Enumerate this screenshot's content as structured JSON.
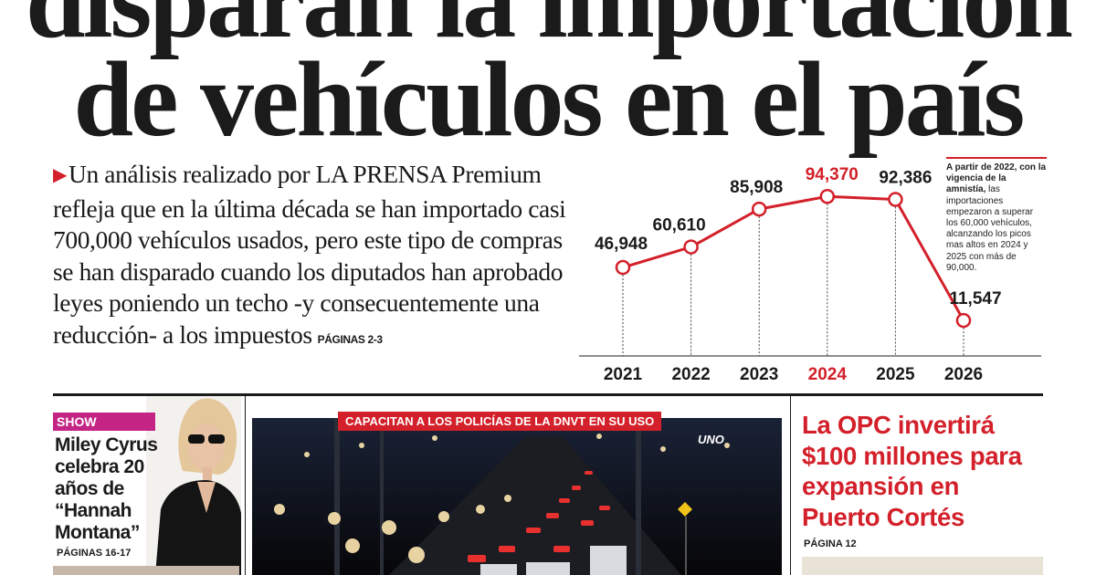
{
  "headline": {
    "line1": "disparan la importación",
    "line2": "de vehículos en el país"
  },
  "lede": {
    "marker": "▶",
    "text": "Un análisis realizado por LA PRENSA Premium refleja que en la última década se han importado casi 700,000 vehículos usados, pero este tipo de compras se han disparado cuando los diputados han aprobado leyes poniendo un techo -y consecuentemente una reducción- a los impuestos",
    "pages": "PÁGINAS 2-3"
  },
  "chart_data": {
    "type": "line",
    "x": [
      "2021",
      "2022",
      "2023",
      "2024",
      "2025",
      "2026"
    ],
    "series": [
      {
        "values": [
          46948,
          60610,
          85908,
          94370,
          92386,
          11547
        ]
      }
    ],
    "labels": [
      "46,948",
      "60,610",
      "85,908",
      "94,370",
      "92,386",
      "11,547"
    ],
    "highlight": "2024",
    "grid": false,
    "color": "#d3202a",
    "highlight_color": "#d3202a"
  },
  "note": {
    "bold": "A partir de 2022, con la vigencia de la amnistía,",
    "text": "las importaciones empezaron a superar los 60,000 vehículos, alcanzando los picos mas altos en 2024 y 2025 con más de 90,000."
  },
  "show": {
    "tag": "SHOW",
    "title": "Miley Cyrus celebra 20 años de “Hannah Montana”",
    "pages": "PÁGINAS 16-17"
  },
  "photo": {
    "tag": "CAPACITAN A LOS POLICÍAS DE LA DNVT EN SU USO",
    "sign": "UNO"
  },
  "opc": {
    "title": "La OPC invertirá $100 millones para expansión en Puerto Cortés",
    "pages": "PÁGINA 12"
  },
  "colors": {
    "accent": "#d3202a",
    "show": "#c42584",
    "ink": "#1b1b1b"
  }
}
